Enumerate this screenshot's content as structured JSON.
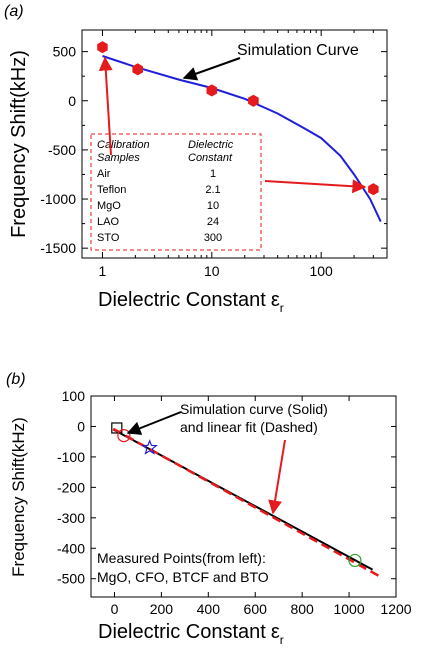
{
  "chart_data": [
    {
      "type": "line",
      "panel_label": "(a)",
      "xscale": "log",
      "xlim": [
        0.65,
        400
      ],
      "ylim": [
        -1600,
        720
      ],
      "xticks": [
        {
          "v": 1,
          "label": "1"
        },
        {
          "v": 10,
          "label": "10"
        },
        {
          "v": 100,
          "label": "100"
        }
      ],
      "yticks": [
        {
          "v": 500,
          "label": "500"
        },
        {
          "v": 0,
          "label": "0"
        },
        {
          "v": -500,
          "label": "-500"
        },
        {
          "v": -1000,
          "label": "-1000"
        },
        {
          "v": -1500,
          "label": "-1500"
        }
      ],
      "xlabel": "Dielectric Constant",
      "xlabel_symbol": "ε",
      "xlabel_sub": "r",
      "ylabel": "Frequency Shift(kHz)",
      "annotation": "Simulation Curve",
      "series": [
        {
          "kind": "line",
          "color": "#1f1fdb",
          "x": [
            1,
            2,
            5,
            10,
            20,
            40,
            70,
            100,
            150,
            200,
            280,
            350
          ],
          "y": [
            455,
            345,
            215,
            130,
            20,
            -130,
            -280,
            -380,
            -560,
            -750,
            -1000,
            -1230
          ]
        },
        {
          "kind": "scatter",
          "color": "#e41a1c",
          "x": [
            1,
            2.1,
            10,
            24,
            300
          ],
          "y": [
            545,
            320,
            105,
            0,
            -900
          ]
        }
      ],
      "table": {
        "headers": [
          [
            "Calibration",
            "Samples"
          ],
          [
            "Dielectric",
            "Constant"
          ]
        ],
        "rows": [
          [
            "Air",
            "1"
          ],
          [
            "Teflon",
            "2.1"
          ],
          [
            "MgO",
            "10"
          ],
          [
            "LAO",
            "24"
          ],
          [
            "STO",
            "300"
          ]
        ]
      }
    },
    {
      "type": "line",
      "panel_label": "(b)",
      "xlim": [
        -100,
        1200
      ],
      "ylim": [
        -560,
        100
      ],
      "xticks": [
        {
          "v": 0,
          "label": "0"
        },
        {
          "v": 200,
          "label": "200"
        },
        {
          "v": 400,
          "label": "400"
        },
        {
          "v": 600,
          "label": "600"
        },
        {
          "v": 800,
          "label": "800"
        },
        {
          "v": 1000,
          "label": "1000"
        },
        {
          "v": 1200,
          "label": "1200"
        }
      ],
      "yticks": [
        {
          "v": 100,
          "label": "100"
        },
        {
          "v": 0,
          "label": "0"
        },
        {
          "v": -100,
          "label": "-100"
        },
        {
          "v": -200,
          "label": "-200"
        },
        {
          "v": -300,
          "label": "-300"
        },
        {
          "v": -400,
          "label": "-400"
        },
        {
          "v": -500,
          "label": "-500"
        }
      ],
      "xlabel": "Dielectric Constant",
      "xlabel_symbol": "ε",
      "xlabel_sub": "r",
      "ylabel": "Frequency Shift(kHz)",
      "annotation_lines": [
        "Simulation curve (Solid)",
        "and linear fit (Dashed)"
      ],
      "measured_lines": [
        "Measured Points(from left):",
        "MgO, CFO, BTCF and BTO"
      ],
      "series": [
        {
          "kind": "line",
          "color": "#000000",
          "x": [
            -5,
            1100
          ],
          "y": [
            -10,
            -470
          ]
        },
        {
          "kind": "dashed",
          "color": "#e41a1c",
          "x": [
            -5,
            1130
          ],
          "y": [
            -8,
            -492
          ]
        }
      ],
      "points": [
        {
          "x": 10,
          "y": -5,
          "marker": "square",
          "color": "#000000"
        },
        {
          "x": 40,
          "y": -30,
          "marker": "circle",
          "color": "#e41a1c"
        },
        {
          "x": 150,
          "y": -70,
          "marker": "star",
          "color": "#1f1fdb"
        },
        {
          "x": 1025,
          "y": -440,
          "marker": "circle",
          "color": "#2ca02c"
        }
      ]
    }
  ]
}
